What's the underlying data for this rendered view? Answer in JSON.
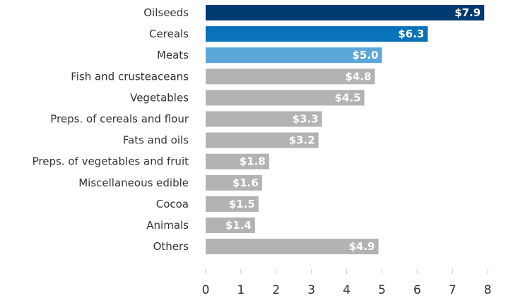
{
  "chart_data": {
    "type": "bar",
    "orientation": "horizontal",
    "title": "",
    "xlabel": "",
    "ylabel": "",
    "xlim": [
      0,
      8
    ],
    "xticks": [
      0,
      1,
      2,
      3,
      4,
      5,
      6,
      7,
      8
    ],
    "grid": false,
    "legend": "none",
    "value_prefix": "$",
    "categories": [
      "Oilseeds",
      "Cereals",
      "Meats",
      "Fish and crusteaceans",
      "Vegetables",
      "Preps. of cereals and flour",
      "Fats and oils",
      "Preps. of vegetables and fruit",
      "Miscellaneous edible",
      "Cocoa",
      "Animals",
      "Others"
    ],
    "values": [
      7.9,
      6.3,
      5.0,
      4.8,
      4.5,
      3.3,
      3.2,
      1.8,
      1.6,
      1.5,
      1.4,
      4.9
    ],
    "value_labels": [
      "$7.9",
      "$6.3",
      "$5.0",
      "$4.8",
      "$4.5",
      "$3.3",
      "$3.2",
      "$1.8",
      "$1.6",
      "$1.5",
      "$1.4",
      "$4.9"
    ],
    "colors": [
      "#003a70",
      "#0a72b8",
      "#5ba7da",
      "#b3b3b3",
      "#b3b3b3",
      "#b3b3b3",
      "#b3b3b3",
      "#b3b3b3",
      "#b3b3b3",
      "#b3b3b3",
      "#b3b3b3",
      "#b3b3b3"
    ]
  }
}
